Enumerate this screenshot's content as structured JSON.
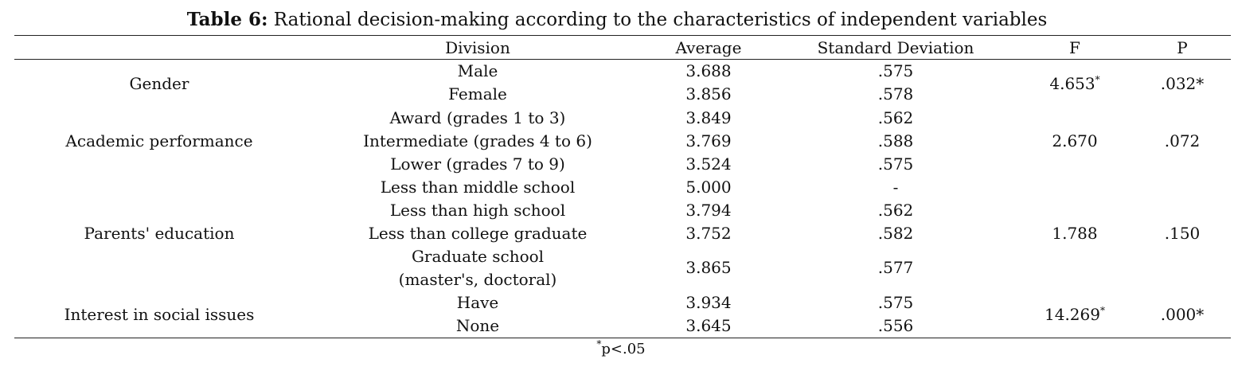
{
  "caption": {
    "label": "Table 6:",
    "text": " Rational decision-making according to the characteristics of independent variables"
  },
  "headers": {
    "group": "",
    "division": "Division",
    "average": "Average",
    "sd": "Standard Deviation",
    "f": "F",
    "p": "P"
  },
  "groups": [
    {
      "name": "Gender",
      "f": "4.653",
      "f_mark": "*",
      "p": ".032*",
      "rows": [
        {
          "division": "Male",
          "average": "3.688",
          "sd": ".575"
        },
        {
          "division": "Female",
          "average": "3.856",
          "sd": ".578"
        }
      ]
    },
    {
      "name": "Academic performance",
      "f": "2.670",
      "f_mark": "",
      "p": ".072",
      "rows": [
        {
          "division": "Award (grades 1 to 3)",
          "average": "3.849",
          "sd": ".562"
        },
        {
          "division": "Intermediate (grades 4 to 6)",
          "average": "3.769",
          "sd": ".588"
        },
        {
          "division": "Lower (grades 7 to 9)",
          "average": "3.524",
          "sd": ".575"
        }
      ]
    },
    {
      "name": "Parents' education",
      "f": "1.788",
      "f_mark": "",
      "p": ".150",
      "rows": [
        {
          "division": "Less than middle school",
          "average": "5.000",
          "sd": "-"
        },
        {
          "division": "Less than high school",
          "average": "3.794",
          "sd": ".562"
        },
        {
          "division": "Less than college graduate",
          "average": "3.752",
          "sd": ".582"
        },
        {
          "division": "Graduate school",
          "division_2": "(master's, doctoral)",
          "average": "3.865",
          "sd": ".577"
        }
      ]
    },
    {
      "name": "Interest in social issues",
      "f": "14.269",
      "f_mark": "*",
      "p": ".000*",
      "rows": [
        {
          "division": "Have",
          "average": "3.934",
          "sd": ".575"
        },
        {
          "division": "None",
          "average": "3.645",
          "sd": ".556"
        }
      ]
    }
  ],
  "footnote": {
    "mark": "*",
    "text": "p<.05"
  }
}
